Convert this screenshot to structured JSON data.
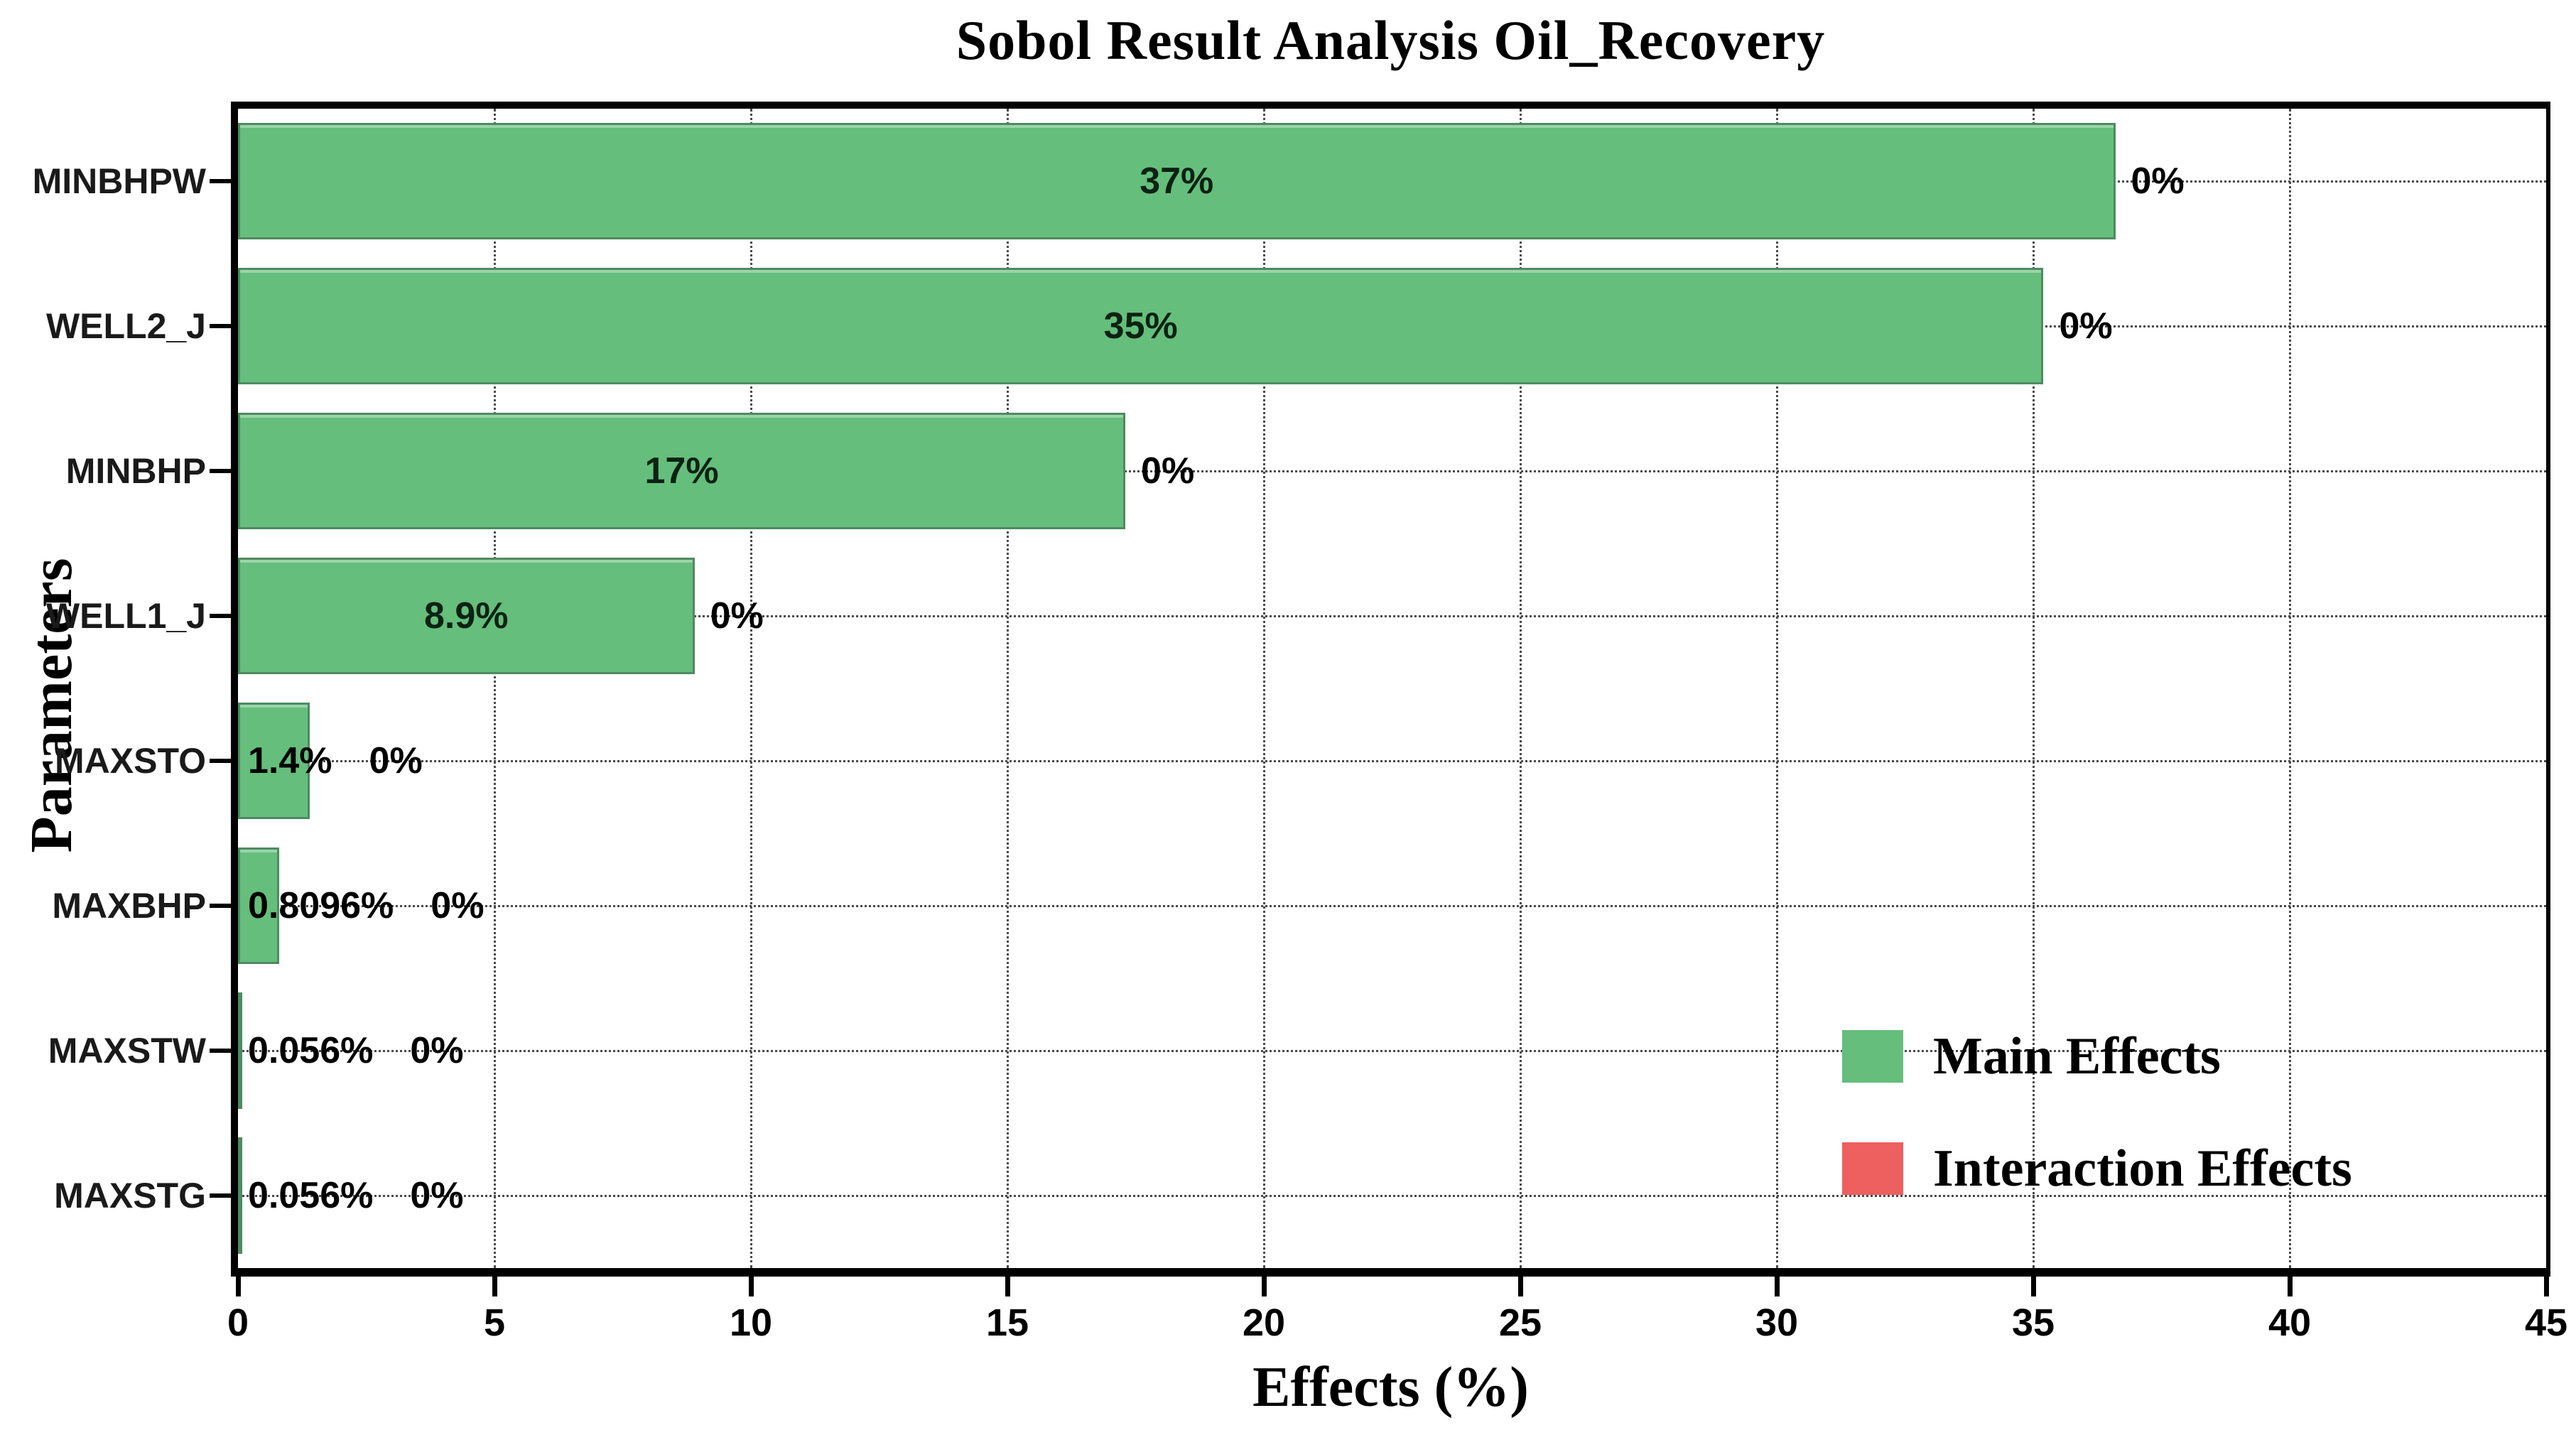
{
  "title": "Sobol Result Analysis Oil_Recovery",
  "chart_data": {
    "type": "bar",
    "orientation": "horizontal",
    "title": "Sobol Result Analysis Oil_Recovery",
    "xlabel": "Effects (%)",
    "ylabel": "Parameters",
    "xlim": [
      0,
      45
    ],
    "xticks": [
      0,
      5,
      10,
      15,
      20,
      25,
      30,
      35,
      40,
      45
    ],
    "grid": "dotted",
    "legend_position": "lower right",
    "categories": [
      "MINBHPW",
      "WELL2_J",
      "MINBHP",
      "WELL1_J",
      "MAXSTO",
      "MAXBHP",
      "MAXSTW",
      "MAXSTG"
    ],
    "series": [
      {
        "name": "Main Effects",
        "color": "#65be7b",
        "values": [
          36.6,
          35.2,
          17.3,
          8.9,
          1.4,
          0.81,
          0.056,
          0.056
        ],
        "labels": [
          "37%",
          "35%",
          "17%",
          "8.9%",
          "1.4%",
          "0.8096%",
          "0.056%",
          "0.056%"
        ]
      },
      {
        "name": "Interaction Effects",
        "color": "#ee5f5f",
        "values": [
          0,
          0,
          0,
          0,
          0,
          0,
          0,
          0
        ],
        "labels": [
          "0%",
          "0%",
          "0%",
          "0%",
          "0%",
          "0%",
          "0%",
          "0%"
        ]
      }
    ],
    "legend": [
      {
        "label": "Main Effects",
        "color": "#65be7b"
      },
      {
        "label": "Interaction Effects",
        "color": "#ee5f5f"
      }
    ]
  },
  "colors": {
    "bar_fill": "#65be7b",
    "bar_border": "#4e8a62",
    "interaction_fill": "#ee5f5f",
    "frame": "#000000",
    "grid": "#4a4a4a",
    "background": "#ffffff"
  }
}
